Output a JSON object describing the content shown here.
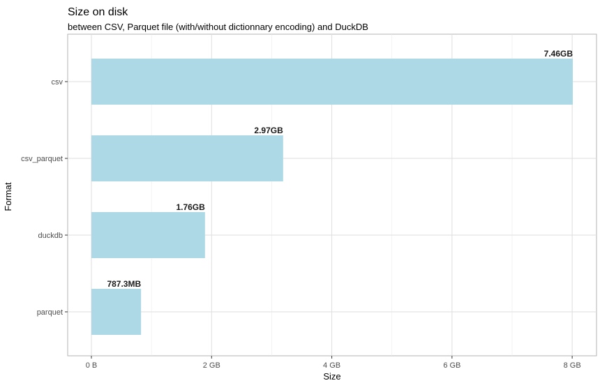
{
  "chart_data": {
    "type": "bar",
    "orientation": "horizontal",
    "title": "Size on disk",
    "subtitle": "between CSV, Parquet file (with/without dictionnary encoding) and DuckDB",
    "xlabel": "Size",
    "ylabel": "Format",
    "categories": [
      "csv",
      "csv_parquet",
      "duckdb",
      "parquet"
    ],
    "values_gb": [
      8.01,
      3.19,
      1.89,
      0.826
    ],
    "data_labels": [
      "7.46GB",
      "2.97GB",
      "1.76GB",
      "787.3MB"
    ],
    "xlim": [
      0,
      8.01
    ],
    "x_ticks": [
      0,
      2,
      4,
      6,
      8
    ],
    "x_tick_labels": [
      "0 B",
      "2 GB",
      "4 GB",
      "6 GB",
      "8 GB"
    ],
    "bar_color": "#add8e6",
    "grid": true,
    "legend": "none"
  }
}
